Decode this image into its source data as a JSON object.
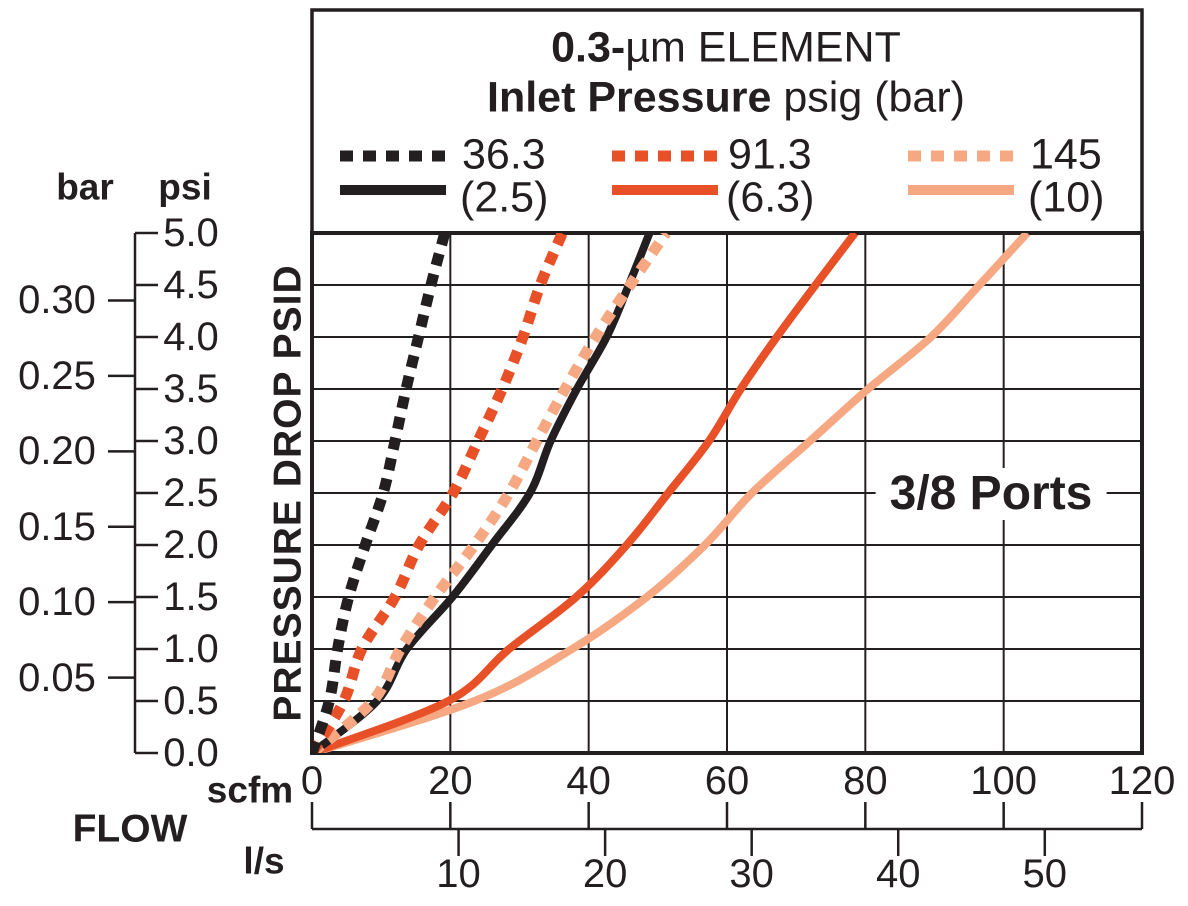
{
  "legend": {
    "title": {
      "bold": "0.3-",
      "rest": "µm ELEMENT"
    },
    "subtitle": {
      "bold": "Inlet Pressure",
      "rest": " psig (bar)"
    },
    "entries": [
      {
        "dotted_label": "36.3",
        "solid_label": "(2.5)",
        "color": "#231F20"
      },
      {
        "dotted_label": "91.3",
        "solid_label": "(6.3)",
        "color": "#E85028"
      },
      {
        "dotted_label": "145",
        "solid_label": "(10)",
        "color": "#F6A882"
      }
    ]
  },
  "y_axis": {
    "left_unit": "bar",
    "right_unit": "psi",
    "axis_label": "PRESSURE DROP PSID",
    "psi_ticks": [
      "5.0",
      "4.5",
      "4.0",
      "3.5",
      "3.0",
      "2.5",
      "2.0",
      "1.5",
      "1.0",
      "0.5",
      "0.0"
    ],
    "bar_ticks": [
      "0.30",
      "0.25",
      "0.20",
      "0.15",
      "0.10",
      "0.05"
    ]
  },
  "x_axis": {
    "axis_label": "FLOW",
    "top_unit": "scfm",
    "bottom_unit": "l/s",
    "scfm_ticks": [
      "0",
      "20",
      "40",
      "60",
      "80",
      "100",
      "120"
    ],
    "ls_ticks": [
      "10",
      "20",
      "30",
      "40",
      "50"
    ]
  },
  "annotation": "3/8 Ports",
  "colors": {
    "ink": "#231F20",
    "orange": "#E85028",
    "salmon": "#F6A882"
  },
  "chart_data": {
    "type": "line",
    "title": "0.3-µm ELEMENT",
    "subtitle": "Inlet Pressure psig (bar)",
    "xlabel": "FLOW — scfm (top scale), l/s (bottom scale)",
    "ylabel": "PRESSURE DROP PSID — psi (right scale), bar (left scale)",
    "annotation": "3/8 Ports",
    "xlim_scfm": [
      0,
      120
    ],
    "ylim_psid": [
      0,
      5.0
    ],
    "x_grid_step_scfm": 20,
    "y_grid_step_psid": 0.5,
    "scfm_per_ls": 2.1189,
    "psi_per_bar": 14.5038,
    "series": [
      {
        "label": "(10)",
        "inlet": "145 psig (10 bar)",
        "style": "solid",
        "color": "#F6A882",
        "points_scfm_psid": [
          [
            0,
            0
          ],
          [
            23.5,
            0.5
          ],
          [
            37.6,
            1.0
          ],
          [
            48.4,
            1.5
          ],
          [
            56.8,
            2.0
          ],
          [
            63.6,
            2.5
          ],
          [
            72.0,
            3.0
          ],
          [
            80.4,
            3.5
          ],
          [
            89.5,
            4.0
          ],
          [
            96.5,
            4.5
          ],
          [
            103.4,
            5.0
          ]
        ]
      },
      {
        "label": "(6.3)",
        "inlet": "91.3 psig (6.3 bar)",
        "style": "solid",
        "color": "#E85028",
        "points_scfm_psid": [
          [
            0,
            0
          ],
          [
            19.7,
            0.5
          ],
          [
            28.5,
            1.0
          ],
          [
            38.2,
            1.5
          ],
          [
            45.5,
            2.0
          ],
          [
            51.5,
            2.5
          ],
          [
            57.4,
            3.0
          ],
          [
            62.0,
            3.5
          ],
          [
            67.2,
            4.0
          ],
          [
            72.8,
            4.5
          ],
          [
            78.5,
            5.0
          ]
        ]
      },
      {
        "label": "(2.5)",
        "inlet": "36.3 psig (2.5 bar)",
        "style": "solid",
        "color": "#231F20",
        "points_scfm_psid": [
          [
            0,
            0
          ],
          [
            9.4,
            0.5
          ],
          [
            13.7,
            1.0
          ],
          [
            20.3,
            1.5
          ],
          [
            26.0,
            2.0
          ],
          [
            31.5,
            2.5
          ],
          [
            34.5,
            3.0
          ],
          [
            38.3,
            3.5
          ],
          [
            42.6,
            4.0
          ],
          [
            45.8,
            4.5
          ],
          [
            48.8,
            5.0
          ]
        ]
      },
      {
        "label": "145",
        "inlet": "145 psig (10 bar)",
        "style": "dotted",
        "color": "#F6A882",
        "points_scfm_psid": [
          [
            0,
            0
          ],
          [
            8.8,
            0.5
          ],
          [
            12.8,
            1.0
          ],
          [
            17.8,
            1.5
          ],
          [
            23.5,
            2.0
          ],
          [
            28.5,
            2.5
          ],
          [
            32.5,
            3.0
          ],
          [
            36.6,
            3.5
          ],
          [
            41.0,
            4.0
          ],
          [
            46.0,
            4.5
          ],
          [
            51.2,
            5.0
          ]
        ]
      },
      {
        "label": "91.3",
        "inlet": "91.3 psig (6.3 bar)",
        "style": "dotted",
        "color": "#E85028",
        "points_scfm_psid": [
          [
            0,
            0
          ],
          [
            4.6,
            0.5
          ],
          [
            7.2,
            1.0
          ],
          [
            12.0,
            1.5
          ],
          [
            15.5,
            2.0
          ],
          [
            20.4,
            2.5
          ],
          [
            24.0,
            3.0
          ],
          [
            27.5,
            3.5
          ],
          [
            30.5,
            4.0
          ],
          [
            33.0,
            4.5
          ],
          [
            36.2,
            5.0
          ]
        ]
      },
      {
        "label": "36.3",
        "inlet": "36.3 psig (2.5 bar)",
        "style": "dotted",
        "color": "#231F20",
        "points_scfm_psid": [
          [
            0,
            0
          ],
          [
            2.5,
            0.5
          ],
          [
            3.7,
            1.0
          ],
          [
            5.3,
            1.5
          ],
          [
            7.7,
            2.0
          ],
          [
            10.3,
            2.5
          ],
          [
            12.0,
            3.0
          ],
          [
            13.6,
            3.5
          ],
          [
            15.4,
            4.0
          ],
          [
            17.2,
            4.5
          ],
          [
            19.2,
            5.0
          ]
        ]
      }
    ]
  }
}
